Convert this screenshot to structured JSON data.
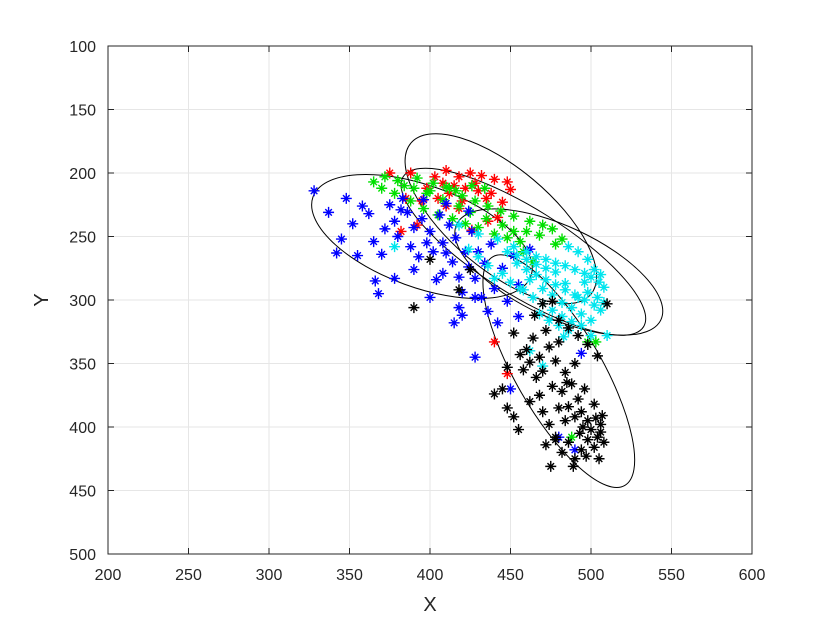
{
  "chart_data": {
    "type": "scatter",
    "xlabel": "X",
    "ylabel": "Y",
    "xlim": [
      200,
      600
    ],
    "ylim": [
      100,
      500
    ],
    "y_reversed": true,
    "xticks": [
      200,
      250,
      300,
      350,
      400,
      450,
      500,
      550,
      600
    ],
    "yticks": [
      100,
      150,
      200,
      250,
      300,
      350,
      400,
      450,
      500
    ],
    "grid": true,
    "marker": "asterisk",
    "series": [
      {
        "color": "#ff0000",
        "points": [
          [
            375,
            200
          ],
          [
            388,
            200
          ],
          [
            403,
            203
          ],
          [
            410,
            198
          ],
          [
            418,
            203
          ],
          [
            425,
            200
          ],
          [
            432,
            202
          ],
          [
            440,
            205
          ],
          [
            448,
            207
          ],
          [
            415,
            210
          ],
          [
            422,
            212
          ],
          [
            430,
            214
          ],
          [
            438,
            216
          ],
          [
            408,
            208
          ],
          [
            398,
            212
          ],
          [
            412,
            216
          ],
          [
            428,
            208
          ],
          [
            435,
            220
          ],
          [
            445,
            223
          ],
          [
            420,
            222
          ],
          [
            405,
            220
          ],
          [
            395,
            222
          ],
          [
            385,
            220
          ],
          [
            442,
            235
          ],
          [
            450,
            213
          ],
          [
            418,
            228
          ],
          [
            410,
            226
          ],
          [
            440,
            333
          ],
          [
            448,
            358
          ],
          [
            382,
            246
          ],
          [
            392,
            241
          ],
          [
            426,
            245
          ],
          [
            436,
            238
          ]
        ]
      },
      {
        "color": "#00e000",
        "points": [
          [
            365,
            207
          ],
          [
            372,
            203
          ],
          [
            380,
            206
          ],
          [
            390,
            212
          ],
          [
            398,
            216
          ],
          [
            408,
            221
          ],
          [
            418,
            226
          ],
          [
            425,
            231
          ],
          [
            435,
            236
          ],
          [
            445,
            241
          ],
          [
            452,
            246
          ],
          [
            460,
            246
          ],
          [
            468,
            249
          ],
          [
            478,
            256
          ],
          [
            388,
            222
          ],
          [
            396,
            228
          ],
          [
            405,
            233
          ],
          [
            414,
            236
          ],
          [
            422,
            240
          ],
          [
            430,
            243
          ],
          [
            440,
            248
          ],
          [
            448,
            251
          ],
          [
            456,
            254
          ],
          [
            400,
            214
          ],
          [
            412,
            212
          ],
          [
            420,
            218
          ],
          [
            428,
            222
          ],
          [
            436,
            226
          ],
          [
            444,
            230
          ],
          [
            452,
            234
          ],
          [
            462,
            238
          ],
          [
            470,
            241
          ],
          [
            476,
            244
          ],
          [
            482,
            252
          ],
          [
            370,
            212
          ],
          [
            378,
            216
          ],
          [
            384,
            210
          ],
          [
            392,
            204
          ],
          [
            402,
            208
          ],
          [
            410,
            211
          ],
          [
            416,
            214
          ],
          [
            426,
            210
          ],
          [
            434,
            212
          ],
          [
            458,
            262
          ],
          [
            464,
            270
          ],
          [
            498,
            333
          ],
          [
            503,
            333
          ],
          [
            488,
            408
          ]
        ]
      },
      {
        "color": "#0000ff",
        "points": [
          [
            328,
            214
          ],
          [
            337,
            231
          ],
          [
            342,
            263
          ],
          [
            345,
            252
          ],
          [
            348,
            220
          ],
          [
            352,
            240
          ],
          [
            355,
            265
          ],
          [
            358,
            226
          ],
          [
            362,
            232
          ],
          [
            365,
            254
          ],
          [
            366,
            285
          ],
          [
            368,
            295
          ],
          [
            372,
            244
          ],
          [
            375,
            225
          ],
          [
            378,
            238
          ],
          [
            380,
            250
          ],
          [
            383,
            220
          ],
          [
            386,
            231
          ],
          [
            388,
            258
          ],
          [
            390,
            243
          ],
          [
            393,
            266
          ],
          [
            395,
            236
          ],
          [
            398,
            255
          ],
          [
            400,
            246
          ],
          [
            402,
            262
          ],
          [
            404,
            284
          ],
          [
            406,
            233
          ],
          [
            408,
            255
          ],
          [
            410,
            263
          ],
          [
            412,
            241
          ],
          [
            414,
            270
          ],
          [
            416,
            251
          ],
          [
            418,
            282
          ],
          [
            420,
            294
          ],
          [
            422,
            262
          ],
          [
            424,
            274
          ],
          [
            426,
            246
          ],
          [
            428,
            283
          ],
          [
            430,
            262
          ],
          [
            432,
            298
          ],
          [
            434,
            271
          ],
          [
            436,
            309
          ],
          [
            438,
            256
          ],
          [
            440,
            291
          ],
          [
            442,
            318
          ],
          [
            445,
            275
          ],
          [
            448,
            301
          ],
          [
            452,
            265
          ],
          [
            455,
            288
          ],
          [
            378,
            283
          ],
          [
            390,
            276
          ],
          [
            400,
            298
          ],
          [
            415,
            318
          ],
          [
            420,
            312
          ],
          [
            428,
            345
          ],
          [
            455,
            313
          ],
          [
            462,
            260
          ],
          [
            450,
            370
          ],
          [
            494,
            342
          ],
          [
            490,
            418
          ],
          [
            480,
            408
          ],
          [
            370,
            264
          ],
          [
            382,
            229
          ],
          [
            396,
            221
          ],
          [
            410,
            224
          ],
          [
            424,
            230
          ],
          [
            408,
            279
          ],
          [
            418,
            306
          ],
          [
            428,
            298
          ]
        ]
      },
      {
        "color": "#00e5ee",
        "points": [
          [
            378,
            258
          ],
          [
            418,
            241
          ],
          [
            430,
            248
          ],
          [
            442,
            252
          ],
          [
            452,
            258
          ],
          [
            460,
            262
          ],
          [
            466,
            266
          ],
          [
            472,
            268
          ],
          [
            478,
            271
          ],
          [
            484,
            273
          ],
          [
            490,
            276
          ],
          [
            496,
            279
          ],
          [
            500,
            282
          ],
          [
            505,
            286
          ],
          [
            508,
            290
          ],
          [
            460,
            276
          ],
          [
            466,
            280
          ],
          [
            472,
            284
          ],
          [
            478,
            288
          ],
          [
            484,
            292
          ],
          [
            490,
            296
          ],
          [
            496,
            300
          ],
          [
            502,
            304
          ],
          [
            506,
            308
          ],
          [
            454,
            271
          ],
          [
            462,
            284
          ],
          [
            470,
            291
          ],
          [
            476,
            296
          ],
          [
            482,
            302
          ],
          [
            488,
            306
          ],
          [
            494,
            311
          ],
          [
            500,
            316
          ],
          [
            458,
            292
          ],
          [
            464,
            298
          ],
          [
            470,
            303
          ],
          [
            476,
            308
          ],
          [
            482,
            313
          ],
          [
            488,
            317
          ],
          [
            494,
            320
          ],
          [
            445,
            279
          ],
          [
            450,
            286
          ],
          [
            456,
            291
          ],
          [
            440,
            283
          ],
          [
            436,
            273
          ],
          [
            430,
            266
          ],
          [
            424,
            260
          ],
          [
            468,
            311
          ],
          [
            474,
            316
          ],
          [
            480,
            320
          ],
          [
            486,
            324
          ],
          [
            492,
            298
          ],
          [
            498,
            294
          ],
          [
            504,
            298
          ],
          [
            508,
            302
          ],
          [
            510,
            328
          ],
          [
            500,
            328
          ],
          [
            484,
            287
          ],
          [
            478,
            278
          ],
          [
            472,
            275
          ],
          [
            466,
            272
          ],
          [
            460,
            268
          ],
          [
            454,
            265
          ],
          [
            448,
            262
          ],
          [
            470,
            352
          ],
          [
            462,
            340
          ],
          [
            486,
            258
          ],
          [
            492,
            262
          ],
          [
            498,
            268
          ],
          [
            496,
            286
          ],
          [
            502,
            276
          ],
          [
            506,
            280
          ],
          [
            483,
            329
          ]
        ]
      },
      {
        "color": "#000000",
        "points": [
          [
            390,
            306
          ],
          [
            400,
            268
          ],
          [
            418,
            292
          ],
          [
            425,
            276
          ],
          [
            440,
            374
          ],
          [
            448,
            353
          ],
          [
            452,
            326
          ],
          [
            456,
            343
          ],
          [
            458,
            355
          ],
          [
            460,
            339
          ],
          [
            462,
            349
          ],
          [
            464,
            330
          ],
          [
            466,
            361
          ],
          [
            468,
            345
          ],
          [
            470,
            356
          ],
          [
            472,
            324
          ],
          [
            474,
            337
          ],
          [
            476,
            368
          ],
          [
            478,
            348
          ],
          [
            480,
            333
          ],
          [
            482,
            372
          ],
          [
            484,
            357
          ],
          [
            486,
            384
          ],
          [
            488,
            366
          ],
          [
            490,
            392
          ],
          [
            492,
            378
          ],
          [
            494,
            388
          ],
          [
            496,
            370
          ],
          [
            498,
            395
          ],
          [
            500,
            402
          ],
          [
            502,
            382
          ],
          [
            504,
            408
          ],
          [
            506,
            398
          ],
          [
            508,
            412
          ],
          [
            470,
            388
          ],
          [
            474,
            398
          ],
          [
            478,
            410
          ],
          [
            482,
            420
          ],
          [
            486,
            412
          ],
          [
            490,
            425
          ],
          [
            494,
            418
          ],
          [
            498,
            410
          ],
          [
            502,
            416
          ],
          [
            506,
            404
          ],
          [
            475,
            431
          ],
          [
            489,
            431
          ],
          [
            478,
            408
          ],
          [
            484,
            395
          ],
          [
            468,
            375
          ],
          [
            462,
            380
          ],
          [
            455,
            402
          ],
          [
            465,
            312
          ],
          [
            470,
            303
          ],
          [
            476,
            301
          ],
          [
            480,
            316
          ],
          [
            486,
            322
          ],
          [
            492,
            328
          ],
          [
            498,
            335
          ],
          [
            504,
            344
          ],
          [
            510,
            303
          ],
          [
            503,
            393
          ],
          [
            495,
            400
          ],
          [
            505,
            425
          ],
          [
            480,
            385
          ],
          [
            485,
            365
          ],
          [
            490,
            350
          ],
          [
            452,
            392
          ],
          [
            448,
            385
          ],
          [
            445,
            370
          ],
          [
            472,
            414
          ],
          [
            493,
            405
          ],
          [
            497,
            423
          ],
          [
            507,
            391
          ]
        ]
      }
    ],
    "ellipses": [
      {
        "cx": 444,
        "cy": 236,
        "rx": 73,
        "ry": 40,
        "angle_deg": 40
      },
      {
        "cx": 395,
        "cy": 250,
        "rx": 72,
        "ry": 40,
        "angle_deg": 20
      },
      {
        "cx": 480,
        "cy": 278,
        "rx": 70,
        "ry": 36,
        "angle_deg": 25
      },
      {
        "cx": 458,
        "cy": 262,
        "rx": 88,
        "ry": 34,
        "angle_deg": 32
      },
      {
        "cx": 480,
        "cy": 356,
        "rx": 82,
        "ry": 34,
        "angle_deg": 60
      }
    ]
  }
}
